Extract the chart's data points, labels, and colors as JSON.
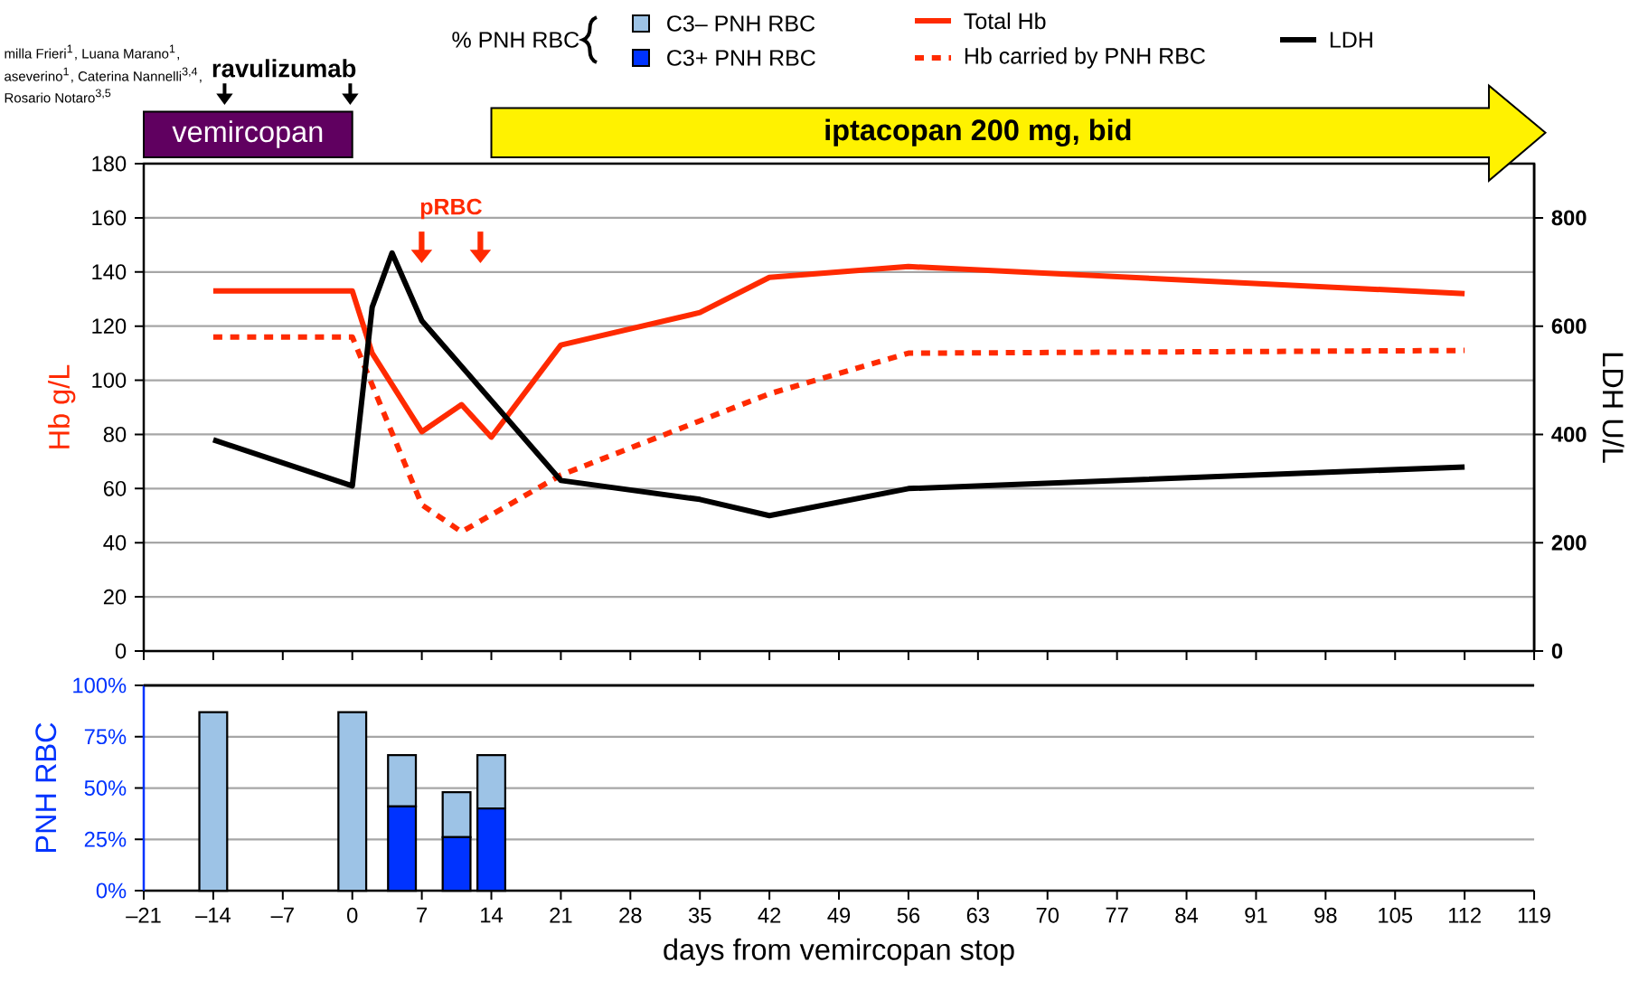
{
  "chart_data": [
    {
      "type": "line",
      "xlim": [
        -21,
        119
      ],
      "xticks": [
        -21,
        -14,
        -7,
        0,
        7,
        14,
        21,
        28,
        35,
        42,
        49,
        56,
        63,
        70,
        77,
        84,
        91,
        98,
        105,
        112,
        119
      ],
      "ylim": [
        0,
        180
      ],
      "yticks": [
        0,
        20,
        40,
        60,
        80,
        100,
        120,
        140,
        160,
        180
      ],
      "y2lim": [
        0,
        900
      ],
      "y2ticks": [
        0,
        200,
        400,
        600,
        800
      ],
      "ylabel": "Hb g/L",
      "y2label": "LDH U/L",
      "grid": "y",
      "legend": "top",
      "tick_labels": "y",
      "series": [
        {
          "name": "Total Hb",
          "color": "#ff2a00",
          "line_style": "solid",
          "x": [
            -14,
            0,
            2,
            7,
            11,
            14,
            21,
            35,
            42,
            56,
            112
          ],
          "values": [
            133,
            133,
            110,
            81,
            91,
            79,
            113,
            125,
            138,
            142,
            132
          ]
        },
        {
          "name": "Hb carried by PNH RBC",
          "color": "#ff2a00",
          "line_style": "dotted",
          "x": [
            -14,
            0,
            7,
            11,
            21,
            42,
            56,
            112
          ],
          "values": [
            116,
            116,
            54,
            44,
            65,
            95,
            110,
            111
          ]
        },
        {
          "name": "LDH",
          "color": "#000000",
          "line_style": "solid",
          "axis": "y2",
          "x": [
            -14,
            0,
            2,
            4,
            7,
            21,
            35,
            42,
            56,
            112
          ],
          "values": [
            390,
            305,
            635,
            735,
            610,
            315,
            280,
            250,
            300,
            340
          ]
        }
      ],
      "annotations": [
        "vemircopan",
        "iptacopan 200 mg, bid",
        "ravulizumab",
        "pRBC",
        "milla Frieri$^{1}$, Luana Marano$^{1}$,",
        "aseverino$^{1}$, Caterina Nannelli$^{3,4}$,",
        "Rosario Notaro$^{3,5}$"
      ]
    },
    {
      "type": "bar",
      "stacked": true,
      "x": [
        -14,
        0,
        5,
        10.5,
        14
      ],
      "xlim": [
        -21,
        119
      ],
      "xticks": [
        {
          "value": -21,
          "label": "–21"
        },
        {
          "value": -14,
          "label": "–14"
        },
        {
          "value": -7,
          "label": "–7"
        },
        0,
        7,
        14,
        21,
        28,
        35,
        42,
        49,
        56,
        63,
        70,
        77,
        84,
        91,
        98,
        105,
        112,
        119
      ],
      "ylim": [
        0,
        100
      ],
      "yticks": [
        {
          "value": 0,
          "label": "0%"
        },
        {
          "value": 25,
          "label": "25%"
        },
        {
          "value": 50,
          "label": "50%"
        },
        {
          "value": 75,
          "label": "75%"
        },
        {
          "value": 100,
          "label": "100%"
        }
      ],
      "ylabel": "PNH RBC",
      "xlabel": "days from vemircopan stop",
      "grid": "y",
      "legend": "top",
      "legend_title": "% PNH RBC",
      "series": [
        {
          "name": "C3+ PNH RBC",
          "color": "#0033ff",
          "values": [
            0,
            0,
            41,
            26,
            40
          ]
        },
        {
          "name": "C3– PNH RBC",
          "color": "#9dc3e6",
          "values": [
            87,
            87,
            25,
            22,
            26
          ]
        }
      ]
    }
  ]
}
